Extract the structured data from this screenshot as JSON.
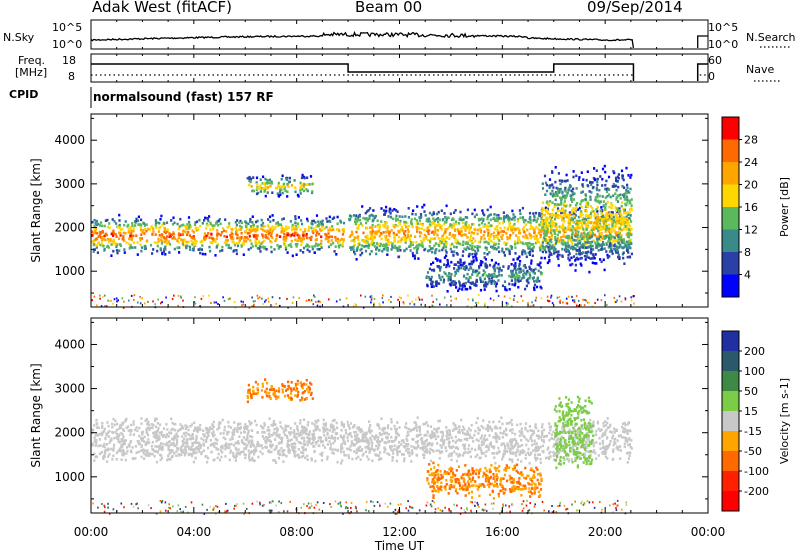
{
  "header": {
    "station": "Adak West (fitACF)",
    "beam": "Beam 00",
    "date": "09/Sep/2014"
  },
  "panels": {
    "noise": {
      "left_label": "N.Sky",
      "left_ticks": [
        "10^5",
        "10^0"
      ],
      "right_ticks": [
        "10^5",
        "10^0"
      ],
      "right_label": "N.Search"
    },
    "freq": {
      "left_label_1": "Freq.",
      "left_label_2": "[MHz]",
      "left_ticks": [
        "18",
        "8"
      ],
      "right_ticks": [
        "60",
        "0"
      ],
      "right_label": "Nave"
    },
    "cpid": {
      "label": "CPID",
      "value": "normalsound (fast) 157 RF"
    }
  },
  "chart_data": {
    "type": "heatmap",
    "xlabel": "Time UT",
    "x_ticks": [
      "00:00",
      "04:00",
      "08:00",
      "12:00",
      "16:00",
      "20:00",
      "00:00"
    ],
    "xlim_hours": [
      0,
      24
    ],
    "data_gap_hours": [
      21.1,
      23.6
    ],
    "panels": [
      {
        "name": "power",
        "ylabel": "Slant Range [km]",
        "ylim": [
          180,
          4600
        ],
        "y_ticks": [
          1000,
          2000,
          3000,
          4000
        ],
        "colorbar_label": "Power [dB]",
        "colorbar_ticks": [
          "28",
          "24",
          "20",
          "16",
          "12",
          "8",
          "4"
        ],
        "colorbar_colors": [
          "#ff0000",
          "#ff6a00",
          "#ffa500",
          "#ffd700",
          "#5cb85c",
          "#3a8a8a",
          "#2b3fa8",
          "#0000ff"
        ],
        "echo_bands": [
          {
            "t0": 0.0,
            "t1": 9.8,
            "r0": 1450,
            "r1": 2250,
            "peak": 28
          },
          {
            "t0": 6.0,
            "t1": 8.6,
            "r0": 2750,
            "r1": 3200,
            "peak": 20
          },
          {
            "t0": 10.0,
            "t1": 21.0,
            "r0": 1350,
            "r1": 2450,
            "peak": 24
          },
          {
            "t0": 13.0,
            "t1": 17.5,
            "r0": 600,
            "r1": 1300,
            "peak": 12
          },
          {
            "t0": 17.5,
            "t1": 21.0,
            "r0": 1200,
            "r1": 3300,
            "peak": 20
          }
        ]
      },
      {
        "name": "velocity",
        "ylabel": "Slant Range [km]",
        "ylim": [
          180,
          4600
        ],
        "y_ticks": [
          1000,
          2000,
          3000,
          4000
        ],
        "colorbar_label": "Velocity [m s-1]",
        "colorbar_ticks": [
          "200",
          "100",
          "50",
          "15",
          "-15",
          "-50",
          "-100",
          "-200"
        ],
        "colorbar_colors": [
          "#2030a0",
          "#2a5a6a",
          "#3c8a46",
          "#7ccc48",
          "#c8c8c8",
          "#ffa500",
          "#ff6a00",
          "#ff2000",
          "#ff0000"
        ],
        "echo_bands": [
          {
            "t0": 0.0,
            "t1": 21.0,
            "r0": 1400,
            "r1": 2300,
            "velocity": 0
          },
          {
            "t0": 6.0,
            "t1": 8.6,
            "r0": 2750,
            "r1": 3200,
            "velocity": -50
          },
          {
            "t0": 13.0,
            "t1": 17.5,
            "r0": 600,
            "r1": 1300,
            "velocity": -50
          },
          {
            "t0": 18.0,
            "t1": 19.5,
            "r0": 1300,
            "r1": 2800,
            "velocity": 30
          }
        ]
      }
    ]
  }
}
